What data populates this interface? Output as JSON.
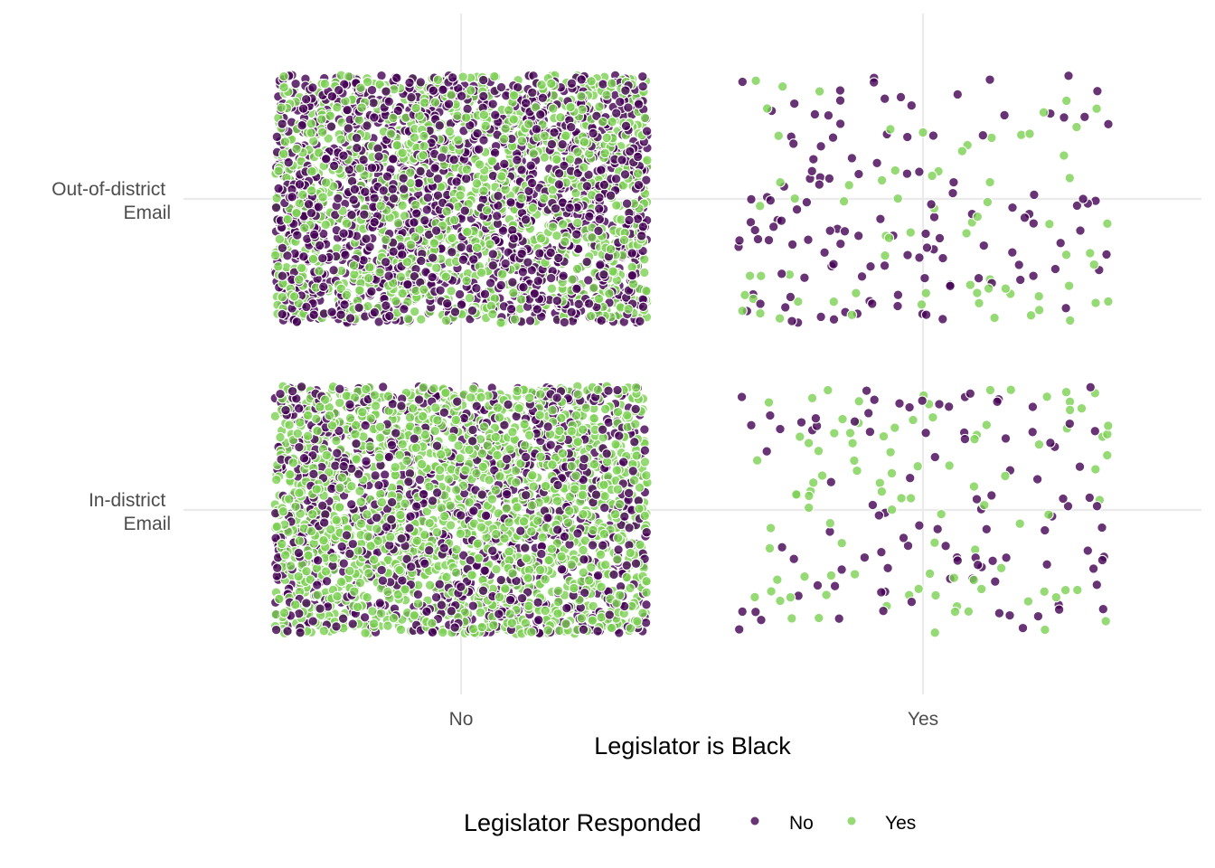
{
  "chart_data": {
    "type": "scatter",
    "subtype": "jitter",
    "title": "",
    "xlabel": "Legislator is Black",
    "ylabel": "",
    "x_categories": [
      "No",
      "Yes"
    ],
    "y_categories": [
      "Out-of-district\nEmail",
      "In-district\nEmail"
    ],
    "y_tick_lines": [
      [
        "Out-of-district",
        "Email"
      ],
      [
        "In-district",
        "Email"
      ]
    ],
    "grid": true,
    "legend": {
      "title": "Legislator Responded",
      "position": "bottom",
      "entries": [
        {
          "label": "No",
          "color": "#440154"
        },
        {
          "label": "Yes",
          "color": "#7AD151"
        }
      ]
    },
    "groups": [
      {
        "x": "No",
        "y": "Out-of-district\nEmail",
        "approx_points": 3000,
        "share_responded_yes": 0.45
      },
      {
        "x": "Yes",
        "y": "Out-of-district\nEmail",
        "approx_points": 200,
        "share_responded_yes": 0.38
      },
      {
        "x": "No",
        "y": "In-district\nEmail",
        "approx_points": 3000,
        "share_responded_yes": 0.6
      },
      {
        "x": "Yes",
        "y": "In-district\nEmail",
        "approx_points": 200,
        "share_responded_yes": 0.45
      }
    ],
    "colors": {
      "no": "#440154",
      "yes": "#7AD151",
      "grid": "#ebebeb"
    }
  }
}
